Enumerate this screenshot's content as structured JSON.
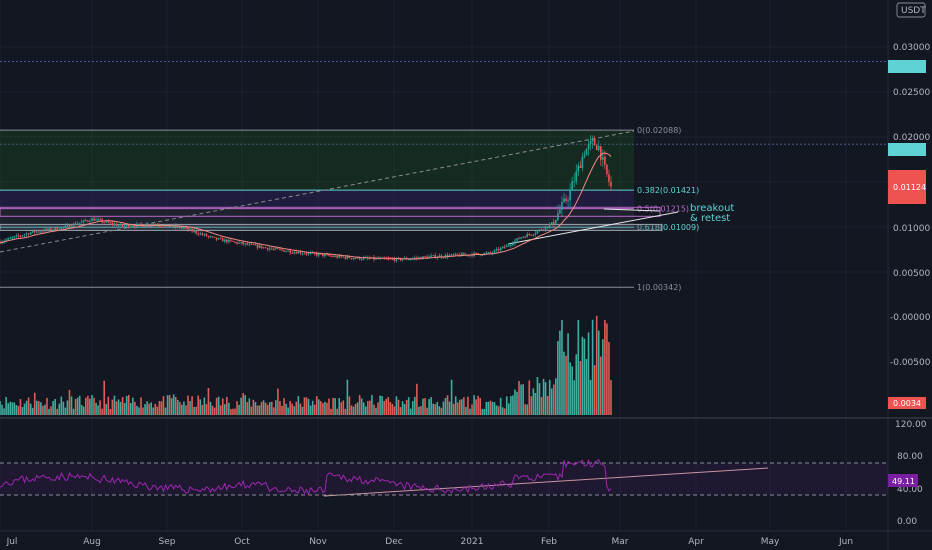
{
  "colors": {
    "background": "#131722",
    "up": "#26a69a",
    "down": "#ef5350",
    "volume_up": "#3fae9e",
    "volume_down": "#e05c57",
    "ma_line": "#f28b82",
    "rsi_line": "#9c27b0",
    "fib_zone": "#1b5e20",
    "fib_line": "#5fd3d3",
    "fib_mid": "#b868c8",
    "level_badge": "#5fd3d3",
    "price_badge": "#ef5350"
  },
  "price_axis": {
    "currency": "USDT",
    "ticks": [
      "0.03000",
      "0.02500",
      "0.02000",
      "0.01500",
      "0.01000",
      "0.00500"
    ],
    "level_badge_label": "",
    "level_badge2_label": "",
    "current_price_label": "0.01124"
  },
  "volume_axis": {
    "ticks": [
      "-0.00000",
      "-0.00500"
    ],
    "badge_label": "0.0034"
  },
  "rsi_axis": {
    "ticks": [
      "120.00",
      "80.00",
      "40.00",
      "0.00"
    ],
    "value_label": "49.11"
  },
  "time_axis": {
    "labels": [
      "Jul",
      "Aug",
      "Sep",
      "Oct",
      "Nov",
      "Dec",
      "2021",
      "Feb",
      "Mar",
      "Apr",
      "May",
      "Jun"
    ]
  },
  "annotations": {
    "line1": "breakout",
    "line2": "& retest"
  },
  "chart_data": {
    "type": "candlestick",
    "pair": "USDT",
    "x_months": [
      "Jul",
      "Aug",
      "Sep",
      "Oct",
      "Nov",
      "Dec",
      "2021",
      "Feb",
      "Mar"
    ],
    "monthly_closes": [
      0.0092,
      0.0104,
      0.0096,
      0.0081,
      0.0066,
      0.0066,
      0.0071,
      0.0108,
      0.0145
    ],
    "period_high": 0.02088,
    "period_low": 0.00342,
    "last_price": 0.01124,
    "horizontal_levels": [
      0.0285,
      0.0193
    ],
    "fibonacci": [
      {
        "level": "0",
        "price": 0.02088,
        "label": "0(0.02088)"
      },
      {
        "level": "0.382",
        "price": 0.01421,
        "label": "0.382(0.01421)"
      },
      {
        "level": "0.5",
        "price": 0.01215,
        "label": "0.5(0.01215)"
      },
      {
        "level": "0.618",
        "price": 0.01009,
        "label": "0.618(0.01009)"
      },
      {
        "level": "1",
        "price": 0.00342,
        "label": "1(0.00342)"
      }
    ],
    "rsi": {
      "value": 49.11,
      "upper_band": 70,
      "lower_band": 30,
      "range": [
        0,
        120
      ]
    },
    "ylim": [
      0.0,
      0.036
    ]
  }
}
